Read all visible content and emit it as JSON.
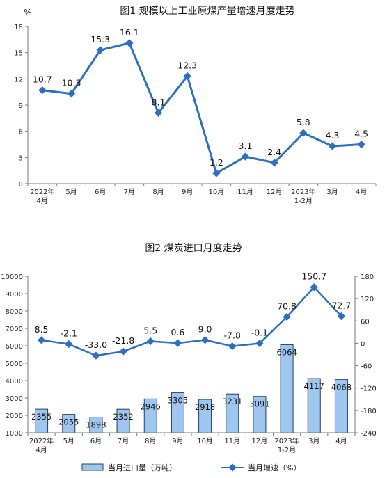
{
  "chart_data": [
    {
      "type": "line",
      "title": "图1  规模以上工业原煤产量增速月度走势",
      "unit_label": "%",
      "categories": [
        [
          "2022年",
          "4月"
        ],
        [
          "5月"
        ],
        [
          "6月"
        ],
        [
          "7月"
        ],
        [
          "8月"
        ],
        [
          "9月"
        ],
        [
          "10月"
        ],
        [
          "11月"
        ],
        [
          "12月"
        ],
        [
          "2023年",
          "1-2月"
        ],
        [
          "3月"
        ],
        [
          "4月"
        ]
      ],
      "series": [
        {
          "values": [
            10.7,
            10.3,
            15.3,
            16.1,
            8.1,
            12.3,
            1.2,
            3.1,
            2.4,
            5.8,
            4.3,
            4.5
          ]
        }
      ],
      "data_labels": [
        "10.7",
        "10.3",
        "15.3",
        "16.1",
        "8.1",
        "12.3",
        "1.2",
        "3.1",
        "2.4",
        "5.8",
        "4.3",
        "4.5"
      ],
      "ylim": [
        0,
        18
      ],
      "yticks": [
        "0",
        "3",
        "6",
        "9",
        "12",
        "15",
        "18"
      ],
      "grid": false,
      "color": "#2a6fc0"
    },
    {
      "type": "bar",
      "title": "图2  煤炭进口月度走势",
      "categories": [
        [
          "2022年",
          "4月"
        ],
        [
          "5月"
        ],
        [
          "6月"
        ],
        [
          "7月"
        ],
        [
          "8月"
        ],
        [
          "9月"
        ],
        [
          "10月"
        ],
        [
          "11月"
        ],
        [
          "12月"
        ],
        [
          "2023年",
          "1-2月"
        ],
        [
          "3月"
        ],
        [
          "4月"
        ]
      ],
      "series": [
        {
          "name": "当月进口量（万吨）",
          "type": "bar",
          "axis": "left",
          "values": [
            2355,
            2055,
            1898,
            2352,
            2946,
            3305,
            2918,
            3231,
            3091,
            6064,
            4117,
            4068
          ],
          "data_labels": [
            "2355",
            "2055",
            "1898",
            "2352",
            "2946",
            "3305",
            "2918",
            "3231",
            "3091",
            "6064",
            "4117",
            "4068"
          ]
        },
        {
          "name": "当月增速（%）",
          "type": "line",
          "axis": "right",
          "values": [
            8.5,
            -2.1,
            -33.0,
            -21.8,
            5.5,
            0.6,
            9.0,
            -7.8,
            -0.1,
            70.8,
            150.7,
            72.7
          ],
          "data_labels": [
            "8.5",
            "-2.1",
            "-33.0",
            "-21.8",
            "5.5",
            "0.6",
            "9.0",
            "-7.8",
            "-0.1",
            "70.8",
            "150.7",
            "72.7"
          ]
        }
      ],
      "ylim_left": [
        1000,
        10000
      ],
      "yticks_left": [
        "1000",
        "2000",
        "3000",
        "4000",
        "5000",
        "6000",
        "7000",
        "8000",
        "9000",
        "10000"
      ],
      "ylim_right": [
        -240,
        180
      ],
      "yticks_right": [
        "-240",
        "-180",
        "-120",
        "-60",
        "0",
        "60",
        "120",
        "180"
      ],
      "legend_position": "bottom",
      "grid": false,
      "bar_color": "#9fc6ef",
      "bar_edge": "#1d3f6e",
      "line_color": "#2a6fc0"
    }
  ]
}
